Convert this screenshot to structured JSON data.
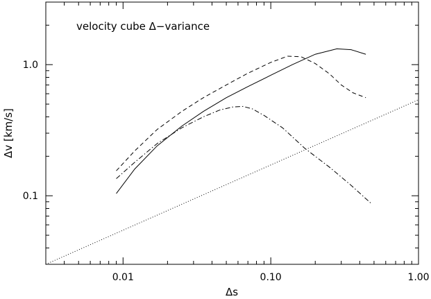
{
  "chart_data": {
    "type": "line",
    "title": "",
    "xlabel": "Δs",
    "ylabel": "Δv  [km/s]",
    "xscale": "log",
    "yscale": "log",
    "xlim": [
      0.003,
      1.0
    ],
    "ylim": [
      0.03,
      3.0
    ],
    "x_ticks": [
      {
        "value": 0.01,
        "label": "0.01"
      },
      {
        "value": 0.1,
        "label": "0.10"
      },
      {
        "value": 1.0,
        "label": "1.00"
      }
    ],
    "y_ticks": [
      {
        "value": 0.1,
        "label": "0.1"
      },
      {
        "value": 1.0,
        "label": "1.0"
      }
    ],
    "grid": false,
    "annotations": [
      {
        "text": "velocity cube Δ−variance",
        "position": "top-left"
      }
    ],
    "series": [
      {
        "style": "solid",
        "points": [
          [
            0.009,
            0.104
          ],
          [
            0.012,
            0.16
          ],
          [
            0.017,
            0.24
          ],
          [
            0.025,
            0.34
          ],
          [
            0.035,
            0.44
          ],
          [
            0.05,
            0.56
          ],
          [
            0.07,
            0.68
          ],
          [
            0.1,
            0.83
          ],
          [
            0.14,
            1.0
          ],
          [
            0.2,
            1.2
          ],
          [
            0.28,
            1.32
          ],
          [
            0.35,
            1.3
          ],
          [
            0.44,
            1.2
          ]
        ]
      },
      {
        "style": "dashed",
        "points": [
          [
            0.009,
            0.155
          ],
          [
            0.012,
            0.22
          ],
          [
            0.017,
            0.32
          ],
          [
            0.025,
            0.44
          ],
          [
            0.035,
            0.56
          ],
          [
            0.05,
            0.7
          ],
          [
            0.07,
            0.86
          ],
          [
            0.1,
            1.04
          ],
          [
            0.13,
            1.16
          ],
          [
            0.16,
            1.15
          ],
          [
            0.2,
            1.02
          ],
          [
            0.25,
            0.85
          ],
          [
            0.3,
            0.7
          ],
          [
            0.36,
            0.61
          ],
          [
            0.44,
            0.56
          ]
        ]
      },
      {
        "style": "dash-dot",
        "points": [
          [
            0.009,
            0.135
          ],
          [
            0.012,
            0.18
          ],
          [
            0.017,
            0.25
          ],
          [
            0.025,
            0.33
          ],
          [
            0.035,
            0.4
          ],
          [
            0.045,
            0.45
          ],
          [
            0.055,
            0.475
          ],
          [
            0.065,
            0.48
          ],
          [
            0.075,
            0.46
          ],
          [
            0.09,
            0.41
          ],
          [
            0.12,
            0.33
          ],
          [
            0.17,
            0.23
          ],
          [
            0.25,
            0.165
          ],
          [
            0.35,
            0.12
          ],
          [
            0.48,
            0.087
          ]
        ]
      },
      {
        "style": "dotted",
        "points": [
          [
            0.003,
            0.03
          ],
          [
            1.0,
            0.54
          ]
        ]
      }
    ]
  }
}
